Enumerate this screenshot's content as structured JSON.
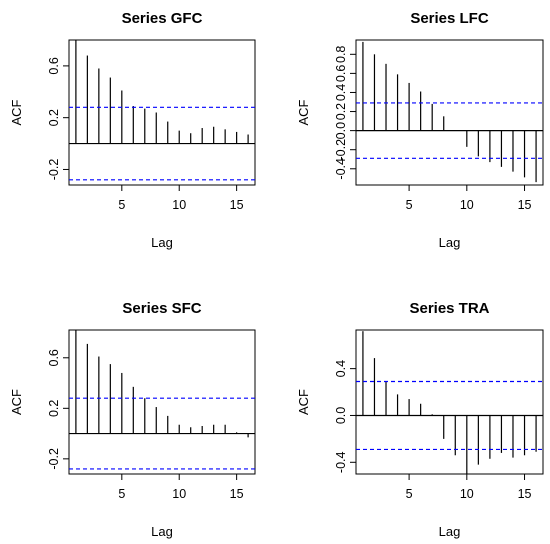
{
  "chart_data": [
    {
      "type": "bar",
      "title": "Series GFC",
      "xlabel": "Lag",
      "ylabel": "ACF",
      "x": [
        1,
        2,
        3,
        4,
        5,
        6,
        7,
        8,
        9,
        10,
        11,
        12,
        13,
        14,
        15,
        16
      ],
      "values": [
        0.8,
        0.68,
        0.58,
        0.51,
        0.41,
        0.29,
        0.27,
        0.24,
        0.17,
        0.1,
        0.08,
        0.12,
        0.13,
        0.11,
        0.09,
        0.07
      ],
      "ci": 0.28,
      "xlim": [
        0.4,
        16.6
      ],
      "ylim": [
        -0.32,
        0.8
      ],
      "xticks": [
        "5",
        "10",
        "15"
      ],
      "yticks": [
        "-0.2",
        "0.2",
        "0.6"
      ],
      "color_bars": "#000000",
      "color_ci": "#0000ff"
    },
    {
      "type": "bar",
      "title": "Series LFC",
      "xlabel": "Lag",
      "ylabel": "ACF",
      "x": [
        1,
        2,
        3,
        4,
        5,
        6,
        7,
        8,
        9,
        10,
        11,
        12,
        13,
        14,
        15,
        16
      ],
      "values": [
        0.93,
        0.8,
        0.7,
        0.59,
        0.5,
        0.41,
        0.28,
        0.15,
        0.0,
        -0.17,
        -0.27,
        -0.33,
        -0.38,
        -0.43,
        -0.49,
        -0.54
      ],
      "ci": 0.29,
      "xlim": [
        0.4,
        16.6
      ],
      "ylim": [
        -0.57,
        0.95
      ],
      "xticks": [
        "5",
        "10",
        "15"
      ],
      "yticks": [
        "-0.4",
        "-0.2",
        "0.0",
        "0.2",
        "0.4",
        "0.6",
        "0.8"
      ],
      "color_bars": "#000000",
      "color_ci": "#0000ff"
    },
    {
      "type": "bar",
      "title": "Series SFC",
      "xlabel": "Lag",
      "ylabel": "ACF",
      "x": [
        1,
        2,
        3,
        4,
        5,
        6,
        7,
        8,
        9,
        10,
        11,
        12,
        13,
        14,
        15,
        16
      ],
      "values": [
        0.82,
        0.71,
        0.61,
        0.55,
        0.48,
        0.37,
        0.28,
        0.21,
        0.14,
        0.07,
        0.05,
        0.06,
        0.07,
        0.07,
        0.01,
        -0.03
      ],
      "ci": 0.28,
      "xlim": [
        0.4,
        16.6
      ],
      "ylim": [
        -0.32,
        0.82
      ],
      "xticks": [
        "5",
        "10",
        "15"
      ],
      "yticks": [
        "-0.2",
        "0.2",
        "0.6"
      ],
      "color_bars": "#000000",
      "color_ci": "#0000ff"
    },
    {
      "type": "bar",
      "title": "Series TRA",
      "xlabel": "Lag",
      "ylabel": "ACF",
      "x": [
        1,
        2,
        3,
        4,
        5,
        6,
        7,
        8,
        9,
        10,
        11,
        12,
        13,
        14,
        15,
        16
      ],
      "values": [
        0.72,
        0.49,
        0.29,
        0.18,
        0.14,
        0.1,
        0.01,
        -0.2,
        -0.34,
        -0.5,
        -0.42,
        -0.37,
        -0.32,
        -0.36,
        -0.34,
        -0.31
      ],
      "ci": 0.29,
      "xlim": [
        0.4,
        16.6
      ],
      "ylim": [
        -0.5,
        0.73
      ],
      "xticks": [
        "5",
        "10",
        "15"
      ],
      "yticks": [
        "-0.4",
        "0.0",
        "0.4"
      ],
      "color_bars": "#000000",
      "color_ci": "#0000ff"
    }
  ]
}
